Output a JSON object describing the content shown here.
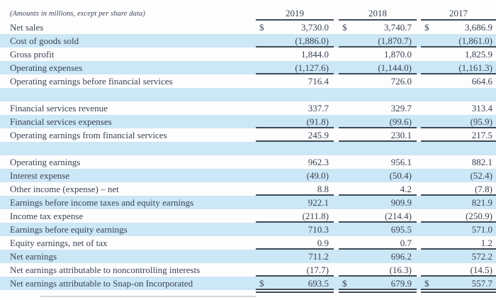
{
  "note": "(Amounts in millions, except per share data)",
  "dollar_sign": "$",
  "columns": [
    "2019",
    "2018",
    "2017"
  ],
  "rows": [
    {
      "label": "Net sales",
      "dollar": true,
      "shade": false,
      "rule": "none",
      "values": [
        "3,730.0",
        "3,740.7",
        "3,686.9"
      ]
    },
    {
      "label": "Cost of goods sold",
      "dollar": false,
      "shade": true,
      "rule": "single",
      "values": [
        "(1,886.0)",
        "(1,870.7)",
        "(1,861.0)"
      ]
    },
    {
      "label": "Gross profit",
      "dollar": false,
      "shade": false,
      "rule": "none",
      "values": [
        "1,844.0",
        "1,870.0",
        "1,825.9"
      ]
    },
    {
      "label": "Operating expenses",
      "dollar": false,
      "shade": true,
      "rule": "single",
      "values": [
        "(1,127.6)",
        "(1,144.0)",
        "(1,161.3)"
      ]
    },
    {
      "label": "Operating earnings before financial services",
      "dollar": false,
      "shade": false,
      "rule": "none",
      "values": [
        "716.4",
        "726.0",
        "664.6"
      ]
    },
    {
      "label": "",
      "spacer": true,
      "dollar": false,
      "shade": true,
      "rule": "none",
      "values": [
        "",
        "",
        ""
      ]
    },
    {
      "label": "Financial services revenue",
      "dollar": false,
      "shade": false,
      "rule": "none",
      "values": [
        "337.7",
        "329.7",
        "313.4"
      ]
    },
    {
      "label": "Financial services expenses",
      "dollar": false,
      "shade": true,
      "rule": "single",
      "values": [
        "(91.8)",
        "(99.6)",
        "(95.9)"
      ]
    },
    {
      "label": "Operating earnings from financial services",
      "dollar": false,
      "shade": false,
      "rule": "single",
      "values": [
        "245.9",
        "230.1",
        "217.5"
      ]
    },
    {
      "label": "",
      "spacer": true,
      "dollar": false,
      "shade": true,
      "rule": "none",
      "values": [
        "",
        "",
        ""
      ]
    },
    {
      "label": "Operating earnings",
      "dollar": false,
      "shade": false,
      "rule": "none",
      "values": [
        "962.3",
        "956.1",
        "882.1"
      ]
    },
    {
      "label": "Interest expense",
      "dollar": false,
      "shade": true,
      "rule": "none",
      "values": [
        "(49.0)",
        "(50.4)",
        "(52.4)"
      ]
    },
    {
      "label": "Other income (expense) – net",
      "dollar": false,
      "shade": false,
      "rule": "single",
      "values": [
        "8.8",
        "4.2",
        "(7.8)"
      ]
    },
    {
      "label": "Earnings before income taxes and equity earnings",
      "dollar": false,
      "shade": true,
      "rule": "none",
      "values": [
        "922.1",
        "909.9",
        "821.9"
      ]
    },
    {
      "label": "Income tax expense",
      "dollar": false,
      "shade": false,
      "rule": "single",
      "values": [
        "(211.8)",
        "(214.4)",
        "(250.9)"
      ]
    },
    {
      "label": "Earnings before equity earnings",
      "dollar": false,
      "shade": true,
      "rule": "none",
      "values": [
        "710.3",
        "695.5",
        "571.0"
      ]
    },
    {
      "label": "Equity earnings, net of tax",
      "dollar": false,
      "shade": false,
      "rule": "single",
      "values": [
        "0.9",
        "0.7",
        "1.2"
      ]
    },
    {
      "label": "Net earnings",
      "dollar": false,
      "shade": true,
      "rule": "none",
      "values": [
        "711.2",
        "696.2",
        "572.2"
      ]
    },
    {
      "label": "Net earnings attributable to noncontrolling interests",
      "dollar": false,
      "shade": false,
      "rule": "single",
      "values": [
        "(17.7)",
        "(16.3)",
        "(14.5)"
      ]
    },
    {
      "label": "Net earnings attributable to Snap-on Incorporated",
      "dollar": true,
      "shade": true,
      "rule": "double",
      "values": [
        "693.5",
        "679.9",
        "557.7"
      ]
    }
  ],
  "colors": {
    "row_shade": "#cce7f6",
    "text": "#3a4353",
    "rule": "#3e4a56",
    "background": "#fdfdfd"
  }
}
